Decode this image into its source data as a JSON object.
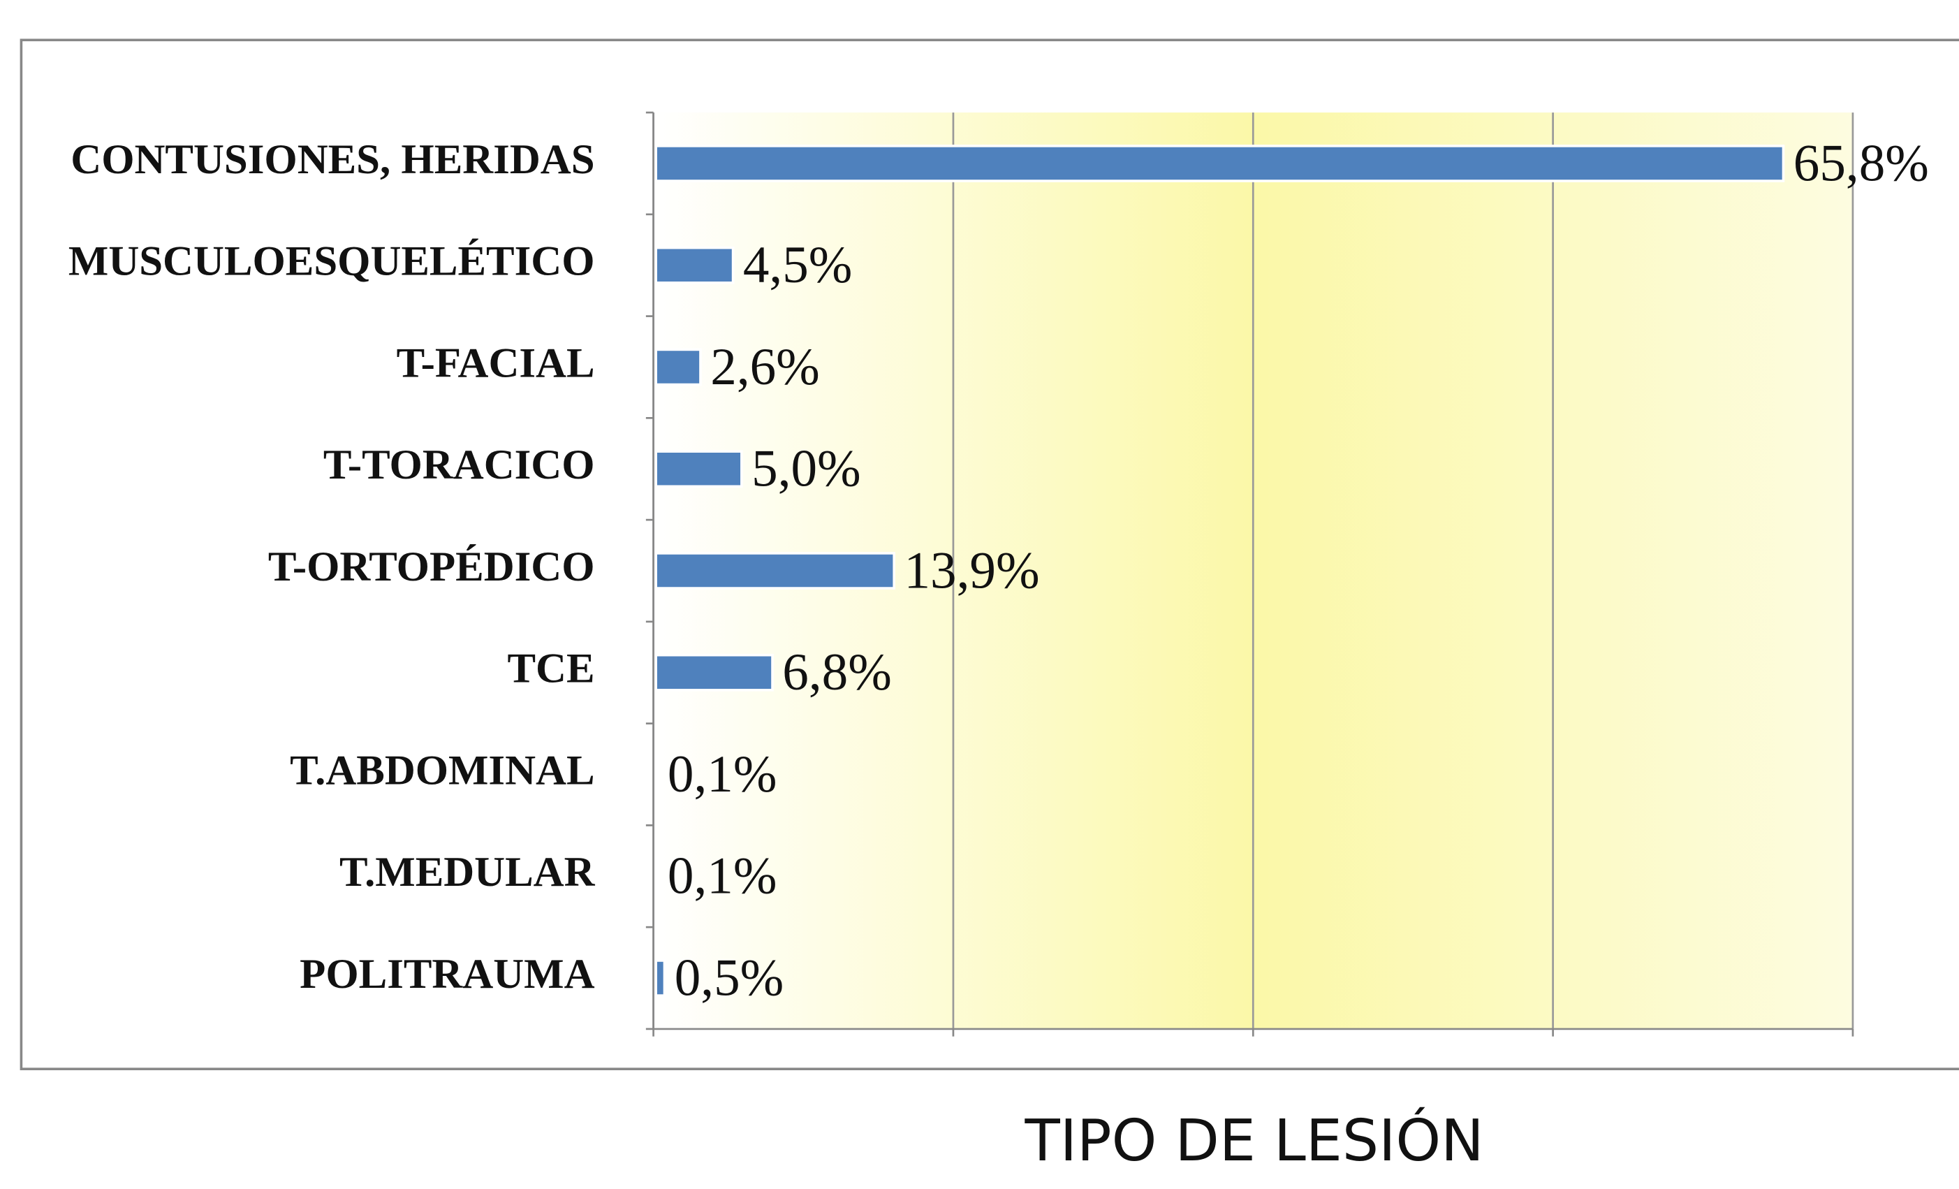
{
  "chart_data": {
    "type": "bar",
    "orientation": "horizontal",
    "title": "TIPO DE LESIÓN",
    "categories": [
      "CONTUSIONES, HERIDAS",
      "MUSCULOESQUELÉTICO",
      "T-FACIAL",
      "T-TORACICO",
      "T-ORTOPÉDICO",
      "TCE",
      "T.ABDOMINAL",
      "T.MEDULAR",
      "POLITRAUMA"
    ],
    "values": [
      65.8,
      4.5,
      2.6,
      5.0,
      13.9,
      6.8,
      0.1,
      0.1,
      0.5
    ],
    "value_labels": [
      "65,8%",
      "4,5%",
      "2,6%",
      "5,0%",
      "13,9%",
      "6,8%",
      "0,1%",
      "0,1%",
      "0,5%"
    ],
    "color": "#4f81bd",
    "xlim": [
      0,
      70
    ],
    "xticks": [
      0,
      17.5,
      35,
      52.5,
      70
    ],
    "grid": true
  }
}
